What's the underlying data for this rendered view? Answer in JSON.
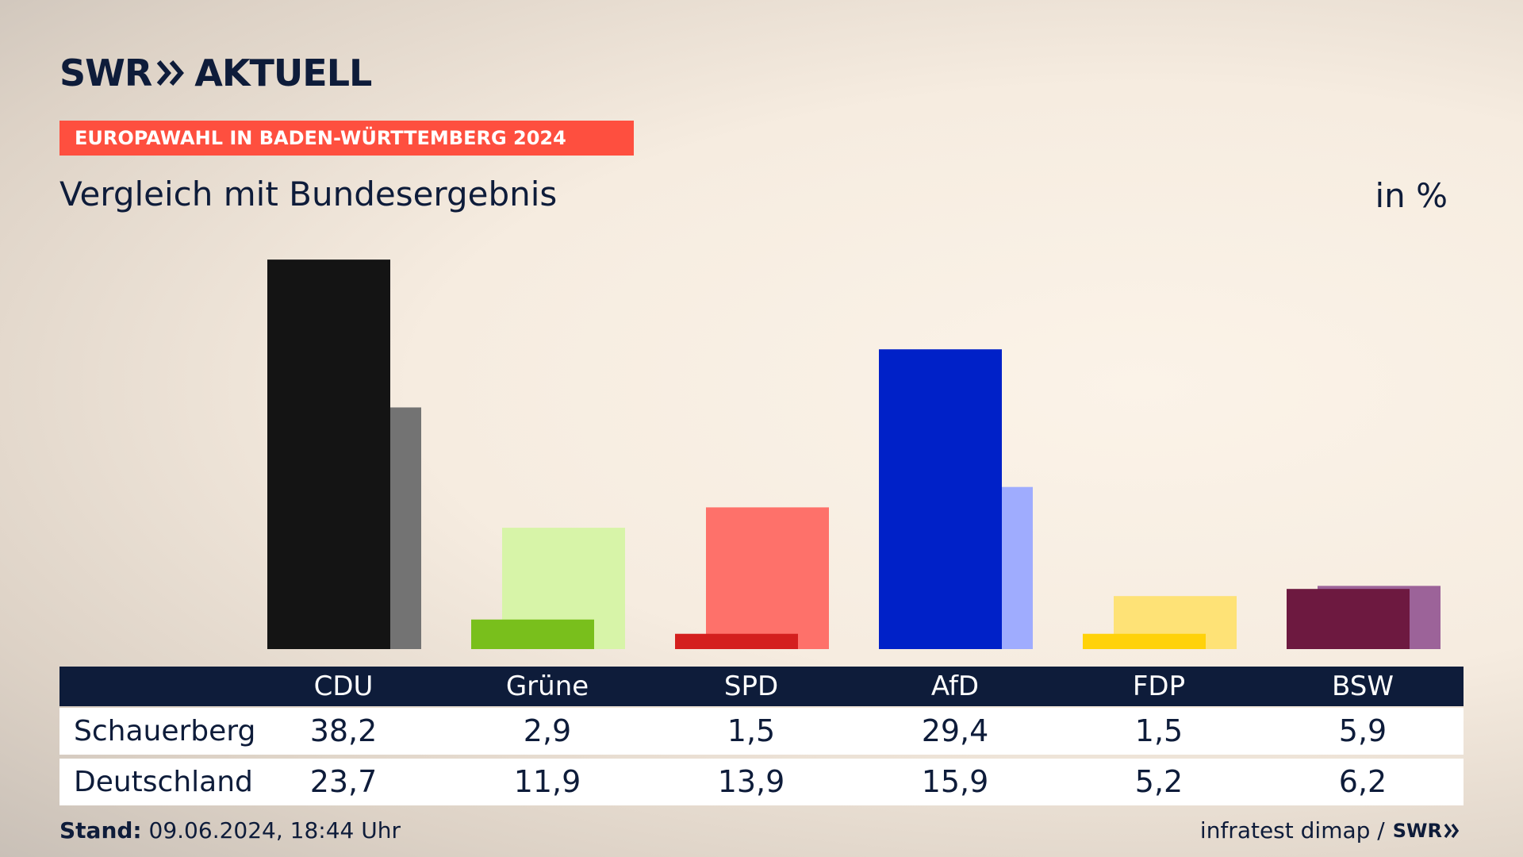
{
  "header": {
    "logo_swr": "SWR",
    "logo_aktuell": "AKTUELL",
    "banner": "EUROPAWAHL IN BADEN-WÜRTTEMBERG 2024",
    "subtitle": "Vergleich mit Bundesergebnis",
    "unit": "in %"
  },
  "colors": {
    "accent_banner": "#fe4f3f",
    "navy": "#0e1c3a"
  },
  "chart_data": {
    "type": "bar",
    "categories": [
      "CDU",
      "Grüne",
      "SPD",
      "AfD",
      "FDP",
      "BSW"
    ],
    "series": [
      {
        "name": "Schauerberg",
        "values": [
          38.2,
          2.9,
          1.5,
          29.4,
          1.5,
          5.9
        ],
        "colors": [
          "#141414",
          "#79bf1c",
          "#d41f1e",
          "#0021c8",
          "#ffd20a",
          "#6d1940"
        ]
      },
      {
        "name": "Deutschland",
        "values": [
          23.7,
          11.9,
          13.9,
          15.9,
          5.2,
          6.2
        ],
        "colors": [
          "#737373",
          "#d7f4a8",
          "#fe716a",
          "#9facfe",
          "#fee276",
          "#9c6399"
        ]
      }
    ],
    "value_labels": {
      "Schauerberg": [
        "38,2",
        "2,9",
        "1,5",
        "29,4",
        "1,5",
        "5,9"
      ],
      "Deutschland": [
        "23,7",
        "11,9",
        "13,9",
        "15,9",
        "5,2",
        "6,2"
      ]
    },
    "ylim": [
      0,
      40
    ]
  },
  "footer": {
    "stand_label": "Stand:",
    "stand_value": "09.06.2024, 18:44 Uhr",
    "source": "infratest dimap /",
    "source_logo": "SWR"
  }
}
